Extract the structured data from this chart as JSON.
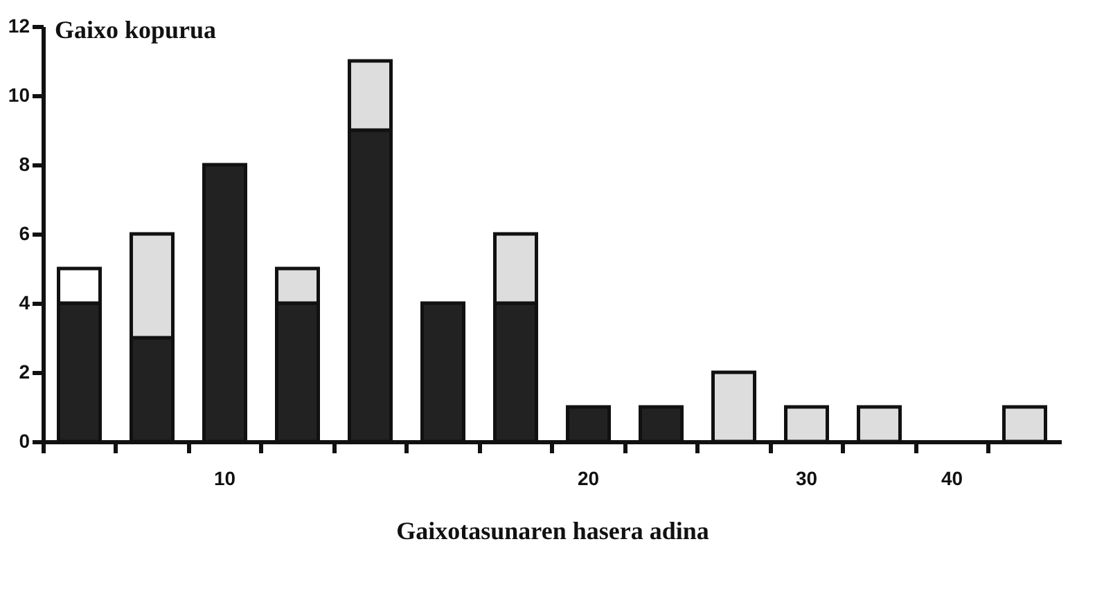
{
  "chart_data": {
    "type": "bar",
    "stacked": true,
    "xlabel": "Gaixotasunaren hasera adina",
    "ylabel": "Gaixo kopurua",
    "categories": [
      null,
      null,
      "10",
      null,
      null,
      null,
      null,
      "20",
      null,
      null,
      "30",
      null,
      "40",
      null
    ],
    "series": [
      {
        "color": "#222222",
        "values": [
          4,
          3,
          8,
          4,
          9,
          4,
          4,
          1,
          1,
          0,
          0,
          0,
          0,
          0
        ]
      },
      {
        "color": "#dddddd",
        "values": [
          0,
          3,
          0,
          1,
          2,
          0,
          2,
          0,
          0,
          2,
          1,
          1,
          0,
          1
        ]
      },
      {
        "color": "#ffffff",
        "values": [
          1,
          0,
          0,
          0,
          0,
          0,
          0,
          0,
          0,
          0,
          0,
          0,
          0,
          0
        ]
      }
    ],
    "ylim": [
      0,
      12
    ],
    "yticks": [
      0,
      2,
      4,
      6,
      8,
      10,
      12
    ],
    "grid": false
  }
}
